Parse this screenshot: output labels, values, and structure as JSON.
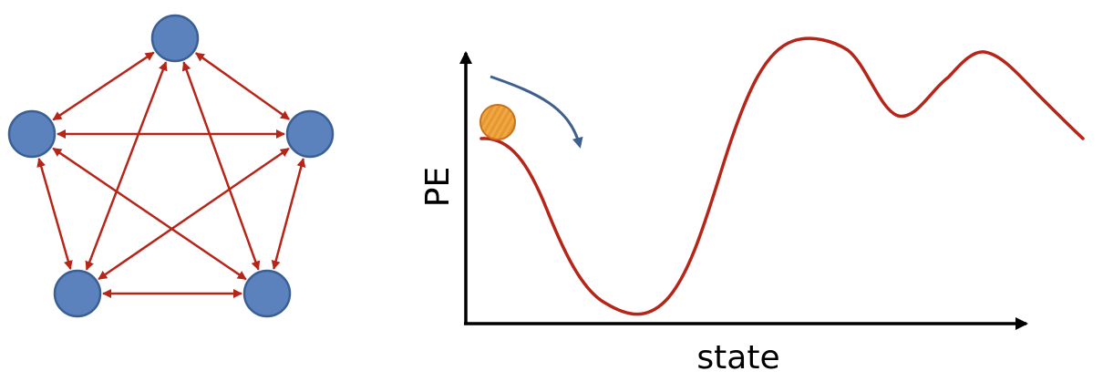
{
  "colors": {
    "node_fill": "#5b82bd",
    "node_stroke": "#3a5f95",
    "edge": "#b72519",
    "curve": "#b72519",
    "axis": "#000000",
    "ball_fill": "#e8962f",
    "ball_stroke": "#c7721c",
    "motion_arrow": "#3f5f8f"
  },
  "network": {
    "nodes": [
      {
        "id": "top"
      },
      {
        "id": "upper-right"
      },
      {
        "id": "lower-right"
      },
      {
        "id": "lower-left"
      },
      {
        "id": "upper-left"
      }
    ],
    "edges": [
      [
        "top",
        "upper-right"
      ],
      [
        "upper-right",
        "lower-right"
      ],
      [
        "lower-right",
        "lower-left"
      ],
      [
        "lower-left",
        "upper-left"
      ],
      [
        "upper-left",
        "top"
      ],
      [
        "top",
        "lower-right"
      ],
      [
        "top",
        "lower-left"
      ],
      [
        "upper-right",
        "upper-left"
      ],
      [
        "upper-right",
        "lower-left"
      ],
      [
        "lower-right",
        "upper-left"
      ]
    ],
    "bidirectional": true
  },
  "energy_landscape": {
    "y_axis_label": "PE",
    "x_axis_label": "state",
    "marker": "ball",
    "motion_arrow": "downhill"
  }
}
